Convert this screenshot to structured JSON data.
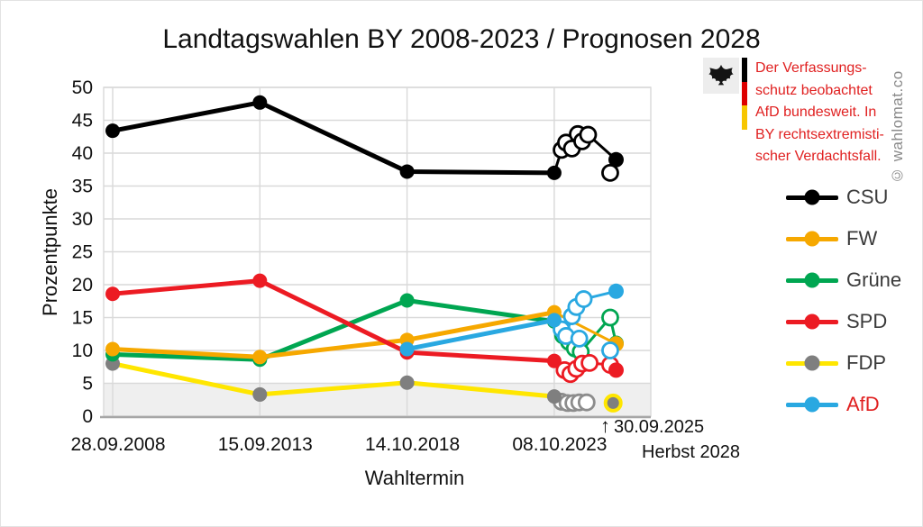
{
  "window": {
    "watermark": "© wahlomat.co"
  },
  "infobox": {
    "lines": [
      "Der Verfassungs-",
      "schutz beobachtet",
      "AfD bundesweit. In",
      "BY rechtsextremisti-",
      "scher Verdachtsfall."
    ],
    "text_color": "#e02020",
    "flag_colors": [
      "#000000",
      "#dd0000",
      "#f7c600"
    ]
  },
  "chart_data": {
    "type": "line",
    "title": "Landtagswahlen BY 2008-2023 / Prognosen 2028",
    "xlabel": "Wahltermin",
    "ylabel": "Prozentpunkte",
    "ylim": [
      0,
      50
    ],
    "ytick_step": 5,
    "grid": true,
    "legend_position": "right",
    "x_tick_labels": [
      "28.09.2008",
      "15.09.2013",
      "14.10.2018",
      "08.10.2023"
    ],
    "threshold_band": {
      "from": 0,
      "to": 5,
      "color": "#efefef"
    },
    "annotations": {
      "arrow": "↑",
      "last_poll_date": "30.09.2025",
      "prognosis_label": "Herbst 2028"
    },
    "series": [
      {
        "name": "CSU",
        "color": "#000000",
        "elections": [
          [
            0,
            43.4
          ],
          [
            1,
            47.7
          ],
          [
            2,
            37.2
          ],
          [
            3,
            37.0
          ]
        ],
        "polls": [
          [
            3.05,
            40.5
          ],
          [
            3.08,
            41.6
          ],
          [
            3.12,
            40.7
          ],
          [
            3.16,
            42.9
          ],
          [
            3.19,
            41.8
          ],
          [
            3.23,
            42.8
          ],
          [
            3.38,
            37.0
          ]
        ],
        "poll_path": [
          [
            3,
            37.0
          ],
          [
            3.05,
            40.5
          ],
          [
            3.08,
            41.6
          ],
          [
            3.12,
            40.7
          ],
          [
            3.16,
            42.9
          ],
          [
            3.19,
            41.8
          ],
          [
            3.23,
            42.8
          ],
          [
            3.42,
            39.0
          ]
        ],
        "prognosis_2028": [
          3.42,
          39.0
        ]
      },
      {
        "name": "FW",
        "color": "#f6a800",
        "elections": [
          [
            0,
            10.2
          ],
          [
            1,
            9.0
          ],
          [
            2,
            11.6
          ],
          [
            3,
            15.8
          ]
        ],
        "polls": [],
        "poll_path": [
          [
            3,
            15.8
          ],
          [
            3.42,
            11.0
          ]
        ],
        "prognosis_2028": [
          3.42,
          11.0
        ]
      },
      {
        "name": "Grüne",
        "color": "#00a651",
        "elections": [
          [
            0,
            9.4
          ],
          [
            1,
            8.6
          ],
          [
            2,
            17.6
          ],
          [
            3,
            14.4
          ]
        ],
        "polls": [
          [
            3.06,
            12.3
          ],
          [
            3.1,
            11.3
          ],
          [
            3.14,
            10.3
          ],
          [
            3.18,
            9.8
          ],
          [
            3.38,
            15.0
          ]
        ],
        "poll_path": [
          [
            3,
            14.4
          ],
          [
            3.06,
            12.3
          ],
          [
            3.1,
            11.3
          ],
          [
            3.14,
            10.3
          ],
          [
            3.18,
            9.8
          ],
          [
            3.38,
            15.0
          ],
          [
            3.42,
            11.1
          ]
        ],
        "prognosis_2028": [
          3.42,
          11.1
        ]
      },
      {
        "name": "SPD",
        "color": "#ec1b23",
        "elections": [
          [
            0,
            18.6
          ],
          [
            1,
            20.6
          ],
          [
            2,
            9.7
          ],
          [
            3,
            8.4
          ]
        ],
        "polls": [
          [
            3.07,
            7.0
          ],
          [
            3.11,
            6.4
          ],
          [
            3.15,
            7.2
          ],
          [
            3.19,
            8.0
          ],
          [
            3.24,
            8.1
          ],
          [
            3.38,
            7.8
          ]
        ],
        "poll_path": [
          [
            3,
            8.4
          ],
          [
            3.07,
            7.0
          ],
          [
            3.11,
            6.4
          ],
          [
            3.15,
            7.2
          ],
          [
            3.19,
            8.0
          ],
          [
            3.24,
            8.1
          ],
          [
            3.38,
            7.8
          ],
          [
            3.42,
            7.0
          ]
        ],
        "prognosis_2028": [
          3.42,
          7.0
        ]
      },
      {
        "name": "FDP",
        "color": "#ffe600",
        "marker_color": "#7f7f7f",
        "poll_stroke": "#8c8c8c",
        "prognosis_ring": true,
        "elections": [
          [
            0,
            8.0
          ],
          [
            1,
            3.3
          ],
          [
            2,
            5.1
          ],
          [
            3,
            3.0
          ]
        ],
        "polls": [
          [
            3.05,
            2.2
          ],
          [
            3.09,
            2.0
          ],
          [
            3.13,
            2.0
          ],
          [
            3.17,
            2.1
          ],
          [
            3.22,
            2.1
          ]
        ],
        "poll_path": [],
        "prognosis_2028": [
          3.4,
          2.0
        ]
      },
      {
        "name": "AfD",
        "color": "#29a8e1",
        "label_color": "#e02020",
        "elections": [
          [
            2,
            10.2
          ],
          [
            3,
            14.6
          ]
        ],
        "polls": [
          [
            3.05,
            13.2
          ],
          [
            3.08,
            12.2
          ],
          [
            3.12,
            15.2
          ],
          [
            3.15,
            16.6
          ],
          [
            3.17,
            11.8
          ],
          [
            3.2,
            17.8
          ],
          [
            3.38,
            10.0
          ]
        ],
        "poll_path": [
          [
            3,
            14.6
          ],
          [
            3.05,
            13.2
          ],
          [
            3.08,
            12.2
          ],
          [
            3.12,
            15.2
          ],
          [
            3.15,
            16.6
          ],
          [
            3.2,
            17.8
          ],
          [
            3.42,
            19.0
          ]
        ],
        "prognosis_2028": [
          3.42,
          19.0
        ]
      }
    ],
    "draw_order": [
      "FDP",
      "Grüne",
      "FW",
      "SPD",
      "AfD",
      "CSU"
    ]
  }
}
